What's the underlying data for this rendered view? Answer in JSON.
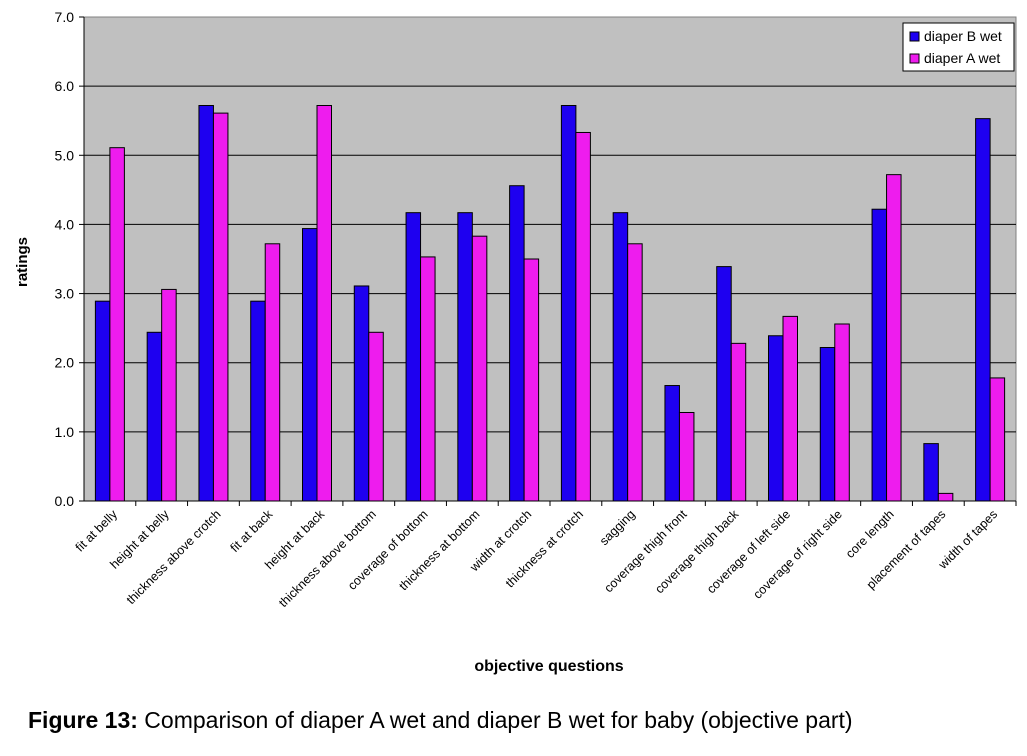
{
  "chart_data": {
    "type": "bar",
    "xlabel": "objective questions",
    "ylabel": "ratings",
    "ylim": [
      0,
      7
    ],
    "yticks": [
      "0.0",
      "1.0",
      "2.0",
      "3.0",
      "4.0",
      "5.0",
      "6.0",
      "7.0"
    ],
    "grid": "horizontal",
    "legend_position": "top-right",
    "categories": [
      "fit at belly",
      "height at belly",
      "thickness above crotch",
      "fit at back",
      "height at back",
      "thickness above bottom",
      "coverage of bottom",
      "thickness at bottom",
      "width at crotch",
      "thickness at crotch",
      "sagging",
      "coverage thigh front",
      "coverage thigh back",
      "coverage of left side",
      "coverage of right side",
      "core length",
      "placement of tapes",
      "width of tapes"
    ],
    "series": [
      {
        "name": "diaper B wet",
        "color": "#1e00f0",
        "values": [
          2.89,
          2.44,
          5.72,
          2.89,
          3.94,
          3.11,
          4.17,
          4.17,
          4.56,
          5.72,
          4.17,
          1.67,
          3.39,
          2.39,
          2.22,
          4.22,
          0.83,
          5.53
        ]
      },
      {
        "name": "diaper A wet",
        "color": "#ee1cee",
        "values": [
          5.11,
          3.06,
          5.61,
          3.72,
          5.72,
          2.44,
          3.53,
          3.83,
          3.5,
          5.33,
          3.72,
          1.28,
          2.28,
          2.67,
          2.56,
          4.72,
          0.11,
          1.78
        ]
      }
    ],
    "plot_background": "#c0c0c0"
  },
  "caption": {
    "label": "Figure 13:",
    "text": " Comparison of diaper A wet and diaper B wet for baby (objective part)"
  }
}
